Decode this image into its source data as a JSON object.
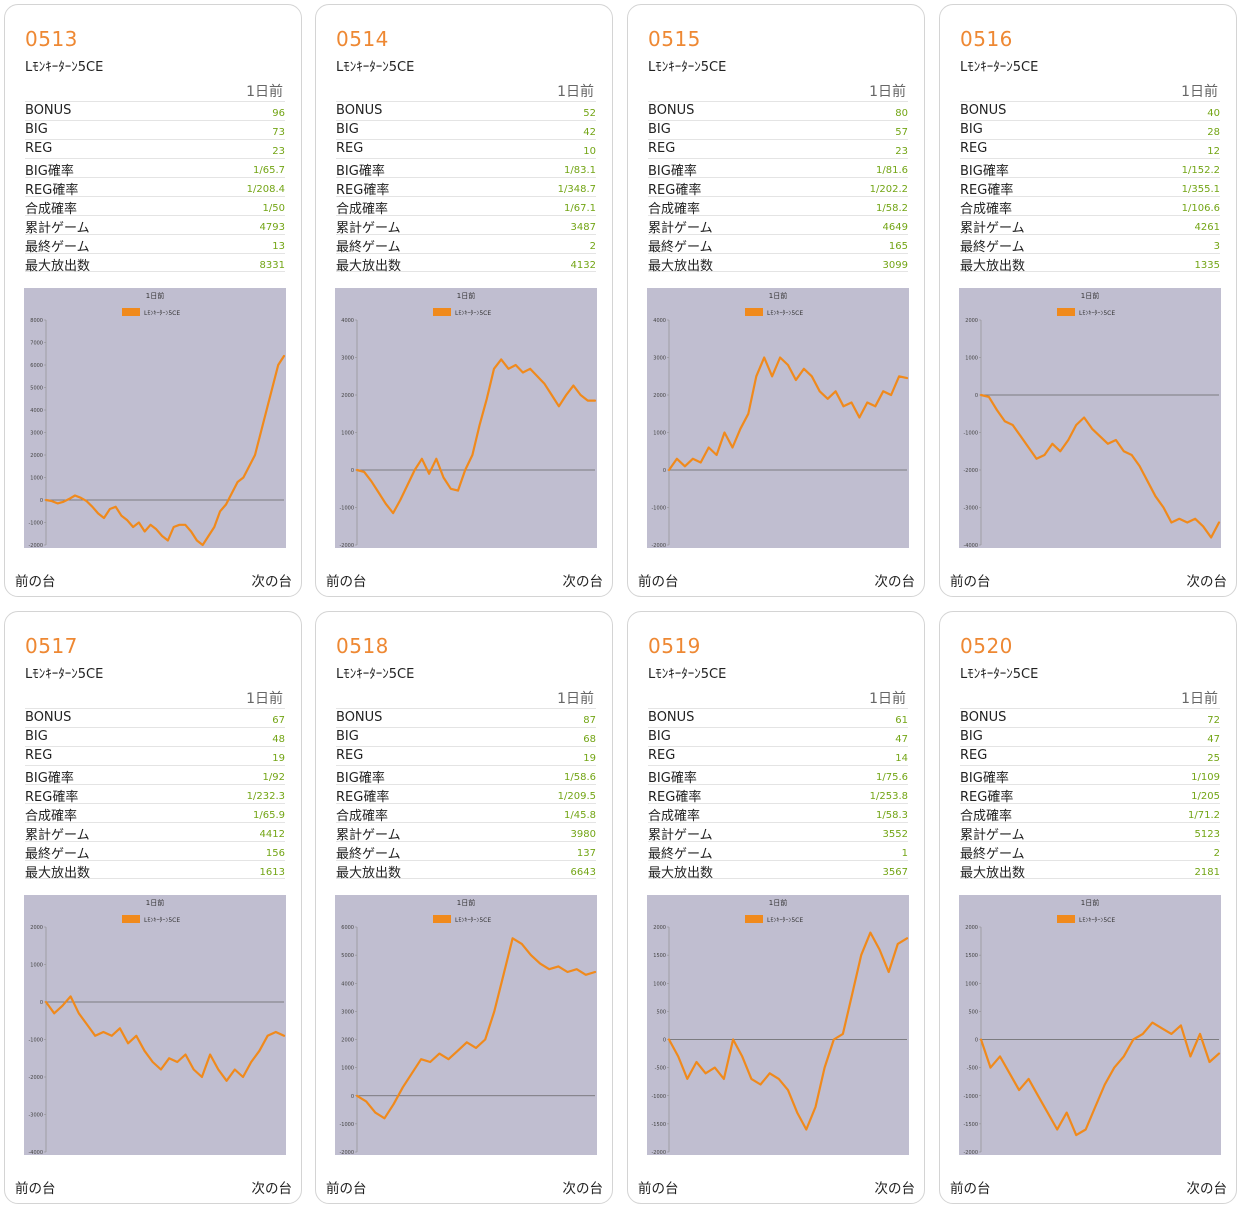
{
  "cards": [
    {
      "id": "0513",
      "model": "Lﾓﾝｷｰﾀｰﾝ5CE",
      "col_header": "1日前",
      "stats": [
        [
          "BONUS",
          "96"
        ],
        [
          "BIG",
          "73"
        ],
        [
          "REG",
          "23"
        ],
        [
          "BIG確率",
          "1/65.7"
        ],
        [
          "REG確率",
          "1/208.4"
        ],
        [
          "合成確率",
          "1/50"
        ],
        [
          "累計ゲーム",
          "4793"
        ],
        [
          "最終ゲーム",
          "13"
        ],
        [
          "最大放出数",
          "8331"
        ]
      ],
      "chart": {
        "title": "1日前",
        "legend": "Lﾓﾝｷｰﾀｰﾝ5CE",
        "ylim": [
          -2000,
          8000
        ],
        "yticks": [
          -2000,
          -1000,
          0,
          1000,
          2000,
          3000,
          4000,
          5000,
          6000,
          7000,
          8000
        ],
        "values": [
          0,
          -50,
          -150,
          -80,
          50,
          200,
          100,
          -50,
          -300,
          -600,
          -800,
          -400,
          -300,
          -700,
          -900,
          -1200,
          -1000,
          -1400,
          -1100,
          -1300,
          -1600,
          -1800,
          -1200,
          -1100,
          -1100,
          -1400,
          -1800,
          -2000,
          -1600,
          -1200,
          -500,
          -200,
          300,
          800,
          1000,
          1500,
          2000,
          3000,
          4000,
          5000,
          6000,
          6400
        ]
      },
      "prev": "前の台",
      "next": "次の台"
    },
    {
      "id": "0514",
      "model": "Lﾓﾝｷｰﾀｰﾝ5CE",
      "col_header": "1日前",
      "stats": [
        [
          "BONUS",
          "52"
        ],
        [
          "BIG",
          "42"
        ],
        [
          "REG",
          "10"
        ],
        [
          "BIG確率",
          "1/83.1"
        ],
        [
          "REG確率",
          "1/348.7"
        ],
        [
          "合成確率",
          "1/67.1"
        ],
        [
          "累計ゲーム",
          "3487"
        ],
        [
          "最終ゲーム",
          "2"
        ],
        [
          "最大放出数",
          "4132"
        ]
      ],
      "chart": {
        "title": "1日前",
        "legend": "Lﾓﾝｷｰﾀｰﾝ5CE",
        "ylim": [
          -2000,
          4000
        ],
        "yticks": [
          -2000,
          -1000,
          0,
          1000,
          2000,
          3000,
          4000
        ],
        "values": [
          0,
          -50,
          -300,
          -600,
          -900,
          -1150,
          -800,
          -400,
          0,
          300,
          -100,
          300,
          -200,
          -500,
          -550,
          0,
          400,
          1200,
          1900,
          2700,
          2950,
          2700,
          2800,
          2600,
          2700,
          2500,
          2300,
          2000,
          1700,
          2000,
          2250,
          2000,
          1850,
          1850
        ]
      },
      "prev": "前の台",
      "next": "次の台"
    },
    {
      "id": "0515",
      "model": "Lﾓﾝｷｰﾀｰﾝ5CE",
      "col_header": "1日前",
      "stats": [
        [
          "BONUS",
          "80"
        ],
        [
          "BIG",
          "57"
        ],
        [
          "REG",
          "23"
        ],
        [
          "BIG確率",
          "1/81.6"
        ],
        [
          "REG確率",
          "1/202.2"
        ],
        [
          "合成確率",
          "1/58.2"
        ],
        [
          "累計ゲーム",
          "4649"
        ],
        [
          "最終ゲーム",
          "165"
        ],
        [
          "最大放出数",
          "3099"
        ]
      ],
      "chart": {
        "title": "1日前",
        "legend": "Lﾓﾝｷｰﾀｰﾝ5CE",
        "ylim": [
          -2000,
          4000
        ],
        "yticks": [
          -2000,
          -1000,
          0,
          1000,
          2000,
          3000,
          4000
        ],
        "values": [
          0,
          300,
          100,
          300,
          200,
          600,
          400,
          1000,
          600,
          1100,
          1500,
          2500,
          3000,
          2500,
          3000,
          2800,
          2400,
          2700,
          2500,
          2100,
          1900,
          2100,
          1700,
          1800,
          1400,
          1800,
          1700,
          2100,
          2000,
          2500,
          2450
        ]
      },
      "prev": "前の台",
      "next": "次の台"
    },
    {
      "id": "0516",
      "model": "Lﾓﾝｷｰﾀｰﾝ5CE",
      "col_header": "1日前",
      "stats": [
        [
          "BONUS",
          "40"
        ],
        [
          "BIG",
          "28"
        ],
        [
          "REG",
          "12"
        ],
        [
          "BIG確率",
          "1/152.2"
        ],
        [
          "REG確率",
          "1/355.1"
        ],
        [
          "合成確率",
          "1/106.6"
        ],
        [
          "累計ゲーム",
          "4261"
        ],
        [
          "最終ゲーム",
          "3"
        ],
        [
          "最大放出数",
          "1335"
        ]
      ],
      "chart": {
        "title": "1日前",
        "legend": "Lﾓﾝｷｰﾀｰﾝ5CE",
        "ylim": [
          -4000,
          2000
        ],
        "yticks": [
          -4000,
          -3000,
          -2000,
          -1000,
          0,
          1000,
          2000
        ],
        "values": [
          0,
          -50,
          -400,
          -700,
          -800,
          -1100,
          -1400,
          -1700,
          -1600,
          -1300,
          -1500,
          -1200,
          -800,
          -600,
          -900,
          -1100,
          -1300,
          -1200,
          -1500,
          -1600,
          -1900,
          -2300,
          -2700,
          -3000,
          -3400,
          -3300,
          -3400,
          -3300,
          -3500,
          -3800,
          -3400
        ]
      },
      "prev": "前の台",
      "next": "次の台"
    },
    {
      "id": "0517",
      "model": "Lﾓﾝｷｰﾀｰﾝ5CE",
      "col_header": "1日前",
      "stats": [
        [
          "BONUS",
          "67"
        ],
        [
          "BIG",
          "48"
        ],
        [
          "REG",
          "19"
        ],
        [
          "BIG確率",
          "1/92"
        ],
        [
          "REG確率",
          "1/232.3"
        ],
        [
          "合成確率",
          "1/65.9"
        ],
        [
          "累計ゲーム",
          "4412"
        ],
        [
          "最終ゲーム",
          "156"
        ],
        [
          "最大放出数",
          "1613"
        ]
      ],
      "chart": {
        "title": "1日前",
        "legend": "Lﾓﾝｷｰﾀｰﾝ5CE",
        "ylim": [
          -4000,
          2000
        ],
        "yticks": [
          -4000,
          -3000,
          -2000,
          -1000,
          0,
          1000,
          2000
        ],
        "values": [
          0,
          -300,
          -100,
          150,
          -300,
          -600,
          -900,
          -800,
          -900,
          -700,
          -1100,
          -900,
          -1300,
          -1600,
          -1800,
          -1500,
          -1600,
          -1400,
          -1800,
          -2000,
          -1400,
          -1800,
          -2100,
          -1800,
          -2000,
          -1600,
          -1300,
          -900,
          -800,
          -900
        ]
      },
      "prev": "前の台",
      "next": "次の台"
    },
    {
      "id": "0518",
      "model": "Lﾓﾝｷｰﾀｰﾝ5CE",
      "col_header": "1日前",
      "stats": [
        [
          "BONUS",
          "87"
        ],
        [
          "BIG",
          "68"
        ],
        [
          "REG",
          "19"
        ],
        [
          "BIG確率",
          "1/58.6"
        ],
        [
          "REG確率",
          "1/209.5"
        ],
        [
          "合成確率",
          "1/45.8"
        ],
        [
          "累計ゲーム",
          "3980"
        ],
        [
          "最終ゲーム",
          "137"
        ],
        [
          "最大放出数",
          "6643"
        ]
      ],
      "chart": {
        "title": "1日前",
        "legend": "Lﾓﾝｷｰﾀｰﾝ5CE",
        "ylim": [
          -2000,
          6000
        ],
        "yticks": [
          -2000,
          -1000,
          0,
          1000,
          2000,
          3000,
          4000,
          5000,
          6000
        ],
        "values": [
          0,
          -200,
          -600,
          -800,
          -300,
          300,
          800,
          1300,
          1200,
          1500,
          1300,
          1600,
          1900,
          1700,
          2000,
          3000,
          4300,
          5600,
          5400,
          5000,
          4700,
          4500,
          4600,
          4400,
          4500,
          4300,
          4400
        ]
      },
      "prev": "前の台",
      "next": "次の台"
    },
    {
      "id": "0519",
      "model": "Lﾓﾝｷｰﾀｰﾝ5CE",
      "col_header": "1日前",
      "stats": [
        [
          "BONUS",
          "61"
        ],
        [
          "BIG",
          "47"
        ],
        [
          "REG",
          "14"
        ],
        [
          "BIG確率",
          "1/75.6"
        ],
        [
          "REG確率",
          "1/253.8"
        ],
        [
          "合成確率",
          "1/58.3"
        ],
        [
          "累計ゲーム",
          "3552"
        ],
        [
          "最終ゲーム",
          "1"
        ],
        [
          "最大放出数",
          "3567"
        ]
      ],
      "chart": {
        "title": "1日前",
        "legend": "Lﾓﾝｷｰﾀｰﾝ5CE",
        "ylim": [
          -2000,
          2000
        ],
        "yticks": [
          -2000,
          -1500,
          -1000,
          -500,
          0,
          500,
          1000,
          1500,
          2000
        ],
        "values": [
          0,
          -300,
          -700,
          -400,
          -600,
          -500,
          -700,
          0,
          -300,
          -700,
          -800,
          -600,
          -700,
          -900,
          -1300,
          -1600,
          -1200,
          -500,
          0,
          100,
          800,
          1500,
          1900,
          1600,
          1200,
          1700,
          1800
        ]
      },
      "prev": "前の台",
      "next": "次の台"
    },
    {
      "id": "0520",
      "model": "Lﾓﾝｷｰﾀｰﾝ5CE",
      "col_header": "1日前",
      "stats": [
        [
          "BONUS",
          "72"
        ],
        [
          "BIG",
          "47"
        ],
        [
          "REG",
          "25"
        ],
        [
          "BIG確率",
          "1/109"
        ],
        [
          "REG確率",
          "1/205"
        ],
        [
          "合成確率",
          "1/71.2"
        ],
        [
          "累計ゲーム",
          "5123"
        ],
        [
          "最終ゲーム",
          "2"
        ],
        [
          "最大放出数",
          "2181"
        ]
      ],
      "chart": {
        "title": "1日前",
        "legend": "Lﾓﾝｷｰﾀｰﾝ5CE",
        "ylim": [
          -2000,
          2000
        ],
        "yticks": [
          -2000,
          -1500,
          -1000,
          -500,
          0,
          500,
          1000,
          1500,
          2000
        ],
        "values": [
          0,
          -500,
          -300,
          -600,
          -900,
          -700,
          -1000,
          -1300,
          -1600,
          -1300,
          -1700,
          -1600,
          -1200,
          -800,
          -500,
          -300,
          0,
          100,
          300,
          200,
          100,
          250,
          -300,
          100,
          -400,
          -250
        ]
      },
      "prev": "前の台",
      "next": "次の台"
    }
  ],
  "colors": {
    "accent": "#ee8833",
    "value": "#73a515",
    "chart_bg": "#c0bed0",
    "line": "#f08a1c"
  }
}
